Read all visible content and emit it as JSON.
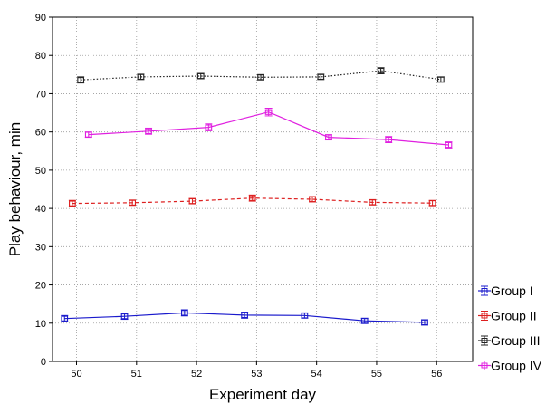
{
  "chart_data": {
    "type": "line",
    "title": "",
    "xlabel": "Experiment day",
    "ylabel": "Play behaviour, min",
    "x_ticks": [
      50,
      51,
      52,
      53,
      54,
      55,
      56
    ],
    "y_ticks": [
      0,
      10,
      20,
      30,
      40,
      50,
      60,
      70,
      80,
      90
    ],
    "xlim": [
      49.6,
      56.6
    ],
    "ylim": [
      0,
      90
    ],
    "grid": true,
    "legend_placement": "right",
    "series": [
      {
        "name": "Group I",
        "color": "#1a1acc",
        "dash": "",
        "x": [
          49.8,
          50.8,
          51.8,
          52.8,
          53.8,
          54.8,
          55.8
        ],
        "y": [
          11.2,
          11.8,
          12.7,
          12.1,
          12.0,
          10.6,
          10.2
        ],
        "err": [
          0.8,
          0.8,
          0.8,
          0.8,
          0.7,
          0.7,
          0.7
        ]
      },
      {
        "name": "Group II",
        "color": "#dd1f1f",
        "dash": "4 3",
        "x": [
          49.93,
          50.93,
          51.93,
          52.93,
          53.93,
          54.93,
          55.93
        ],
        "y": [
          41.3,
          41.5,
          41.9,
          42.7,
          42.4,
          41.6,
          41.4
        ],
        "err": [
          0.8,
          0.7,
          0.7,
          0.8,
          0.7,
          0.7,
          0.7
        ]
      },
      {
        "name": "Group III",
        "color": "#222222",
        "dash": "1.5 2",
        "x": [
          50.07,
          51.07,
          52.07,
          53.07,
          54.07,
          55.07,
          56.07
        ],
        "y": [
          73.6,
          74.4,
          74.6,
          74.3,
          74.4,
          76.0,
          73.7
        ],
        "err": [
          0.8,
          0.7,
          0.7,
          0.7,
          0.7,
          0.8,
          0.7
        ]
      },
      {
        "name": "Group IV",
        "color": "#e020e0",
        "dash": "",
        "x": [
          50.2,
          51.2,
          52.2,
          53.2,
          54.2,
          55.2,
          56.2
        ],
        "y": [
          59.3,
          60.2,
          61.2,
          65.2,
          58.6,
          58.0,
          56.6
        ],
        "err": [
          0.7,
          0.8,
          0.9,
          1.0,
          0.7,
          0.8,
          0.8
        ]
      }
    ]
  }
}
